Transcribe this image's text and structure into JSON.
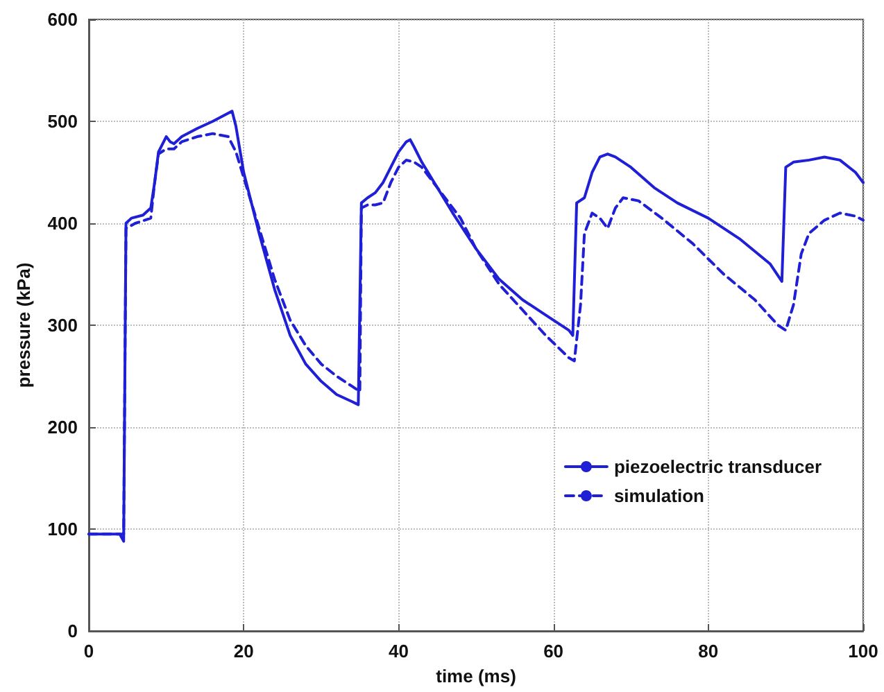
{
  "chart_data": {
    "type": "line",
    "xlabel": "time (ms)",
    "ylabel": "pressure (kPa)",
    "xlim": [
      0,
      100
    ],
    "xticks": [
      0,
      20,
      40,
      60,
      80,
      100
    ],
    "ylim": [
      0,
      600
    ],
    "yticks": [
      0,
      100,
      200,
      300,
      400,
      500,
      600
    ],
    "grid": true,
    "legend": "right",
    "marker": "none",
    "series": [
      {
        "name": "piezoelectric transducer",
        "color": "#1f1fd6",
        "line_style": "solid",
        "x": [
          0,
          4,
          4.5,
          4.8,
          5.5,
          7,
          8,
          8.5,
          9,
          10,
          10.5,
          11,
          12,
          14,
          16,
          18,
          18.5,
          19,
          20,
          22,
          24,
          26,
          28,
          30,
          32,
          34,
          34.8,
          35.2,
          36,
          37,
          38,
          39,
          40,
          41,
          41.5,
          42,
          43,
          45,
          47,
          50,
          53,
          56,
          59,
          62,
          62.5,
          63,
          64,
          65,
          66,
          67,
          68,
          70,
          73,
          76,
          80,
          84,
          88,
          89.5,
          90,
          91,
          93,
          95,
          97,
          99,
          100
        ],
        "values": [
          95,
          95,
          88,
          400,
          405,
          408,
          415,
          440,
          470,
          485,
          480,
          478,
          485,
          493,
          500,
          508,
          510,
          495,
          450,
          390,
          335,
          290,
          262,
          245,
          232,
          225,
          222,
          420,
          425,
          430,
          440,
          455,
          470,
          480,
          482,
          475,
          460,
          435,
          410,
          375,
          345,
          325,
          310,
          295,
          290,
          420,
          425,
          450,
          465,
          468,
          465,
          455,
          435,
          420,
          405,
          385,
          360,
          343,
          455,
          460,
          462,
          465,
          462,
          450,
          440
        ]
      },
      {
        "name": "simulation",
        "color": "#1f1fd6",
        "line_style": "dashed",
        "x": [
          0,
          4.5,
          4.8,
          6,
          8,
          8.5,
          9,
          10,
          11,
          12,
          14,
          16,
          18,
          19,
          20,
          22,
          24,
          26,
          28,
          30,
          32,
          34,
          35,
          35.2,
          36,
          37,
          38,
          39,
          40,
          41,
          42,
          43,
          45,
          48,
          50,
          53,
          56,
          59,
          62,
          62.7,
          63.5,
          64,
          65,
          66,
          67,
          68,
          69,
          71,
          74,
          78,
          82,
          86,
          89,
          90,
          91,
          92,
          93,
          95,
          97,
          99,
          100
        ],
        "values": [
          95,
          95,
          395,
          400,
          405,
          440,
          468,
          473,
          473,
          480,
          485,
          488,
          485,
          470,
          445,
          395,
          345,
          305,
          280,
          262,
          250,
          240,
          235,
          415,
          418,
          418,
          420,
          440,
          455,
          462,
          460,
          455,
          435,
          405,
          375,
          340,
          315,
          290,
          268,
          265,
          320,
          390,
          410,
          405,
          395,
          415,
          425,
          422,
          405,
          380,
          350,
          325,
          300,
          295,
          320,
          370,
          390,
          403,
          410,
          407,
          403
        ]
      }
    ]
  }
}
